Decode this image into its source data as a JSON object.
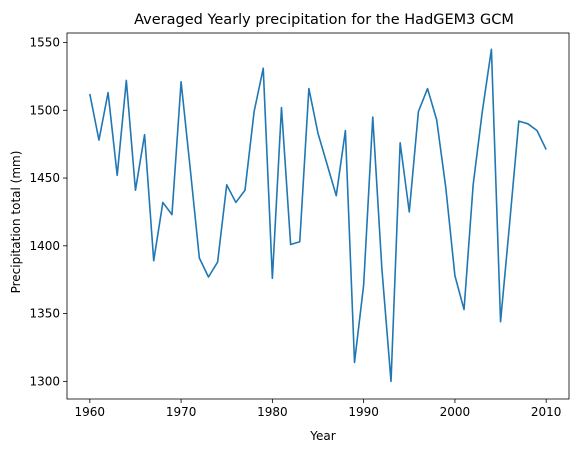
{
  "chart_data": {
    "type": "line",
    "title": "Averaged Yearly precipitation for the HadGEM3 GCM",
    "xlabel": "Year",
    "ylabel": "Precipitation total (mm)",
    "xlim": [
      1957.5,
      2012.5
    ],
    "ylim": [
      1287,
      1557
    ],
    "xticks": [
      1960,
      1970,
      1980,
      1990,
      2000,
      2010
    ],
    "yticks": [
      1300,
      1350,
      1400,
      1450,
      1500,
      1550
    ],
    "grid": false,
    "line_color": "#1f77b4",
    "series": [
      {
        "x": [
          1960,
          1961,
          1962,
          1963,
          1964,
          1965,
          1966,
          1967,
          1968,
          1969,
          1970,
          1971,
          1972,
          1973,
          1974,
          1975,
          1976,
          1977,
          1978,
          1979,
          1980,
          1981,
          1982,
          1983,
          1984,
          1985,
          1986,
          1987,
          1988,
          1989,
          1990,
          1991,
          1992,
          1993,
          1994,
          1995,
          1996,
          1997,
          1998,
          1999,
          2000,
          2001,
          2002,
          2003,
          2004,
          2005,
          2006,
          2007,
          2008,
          2009,
          2010
        ],
        "values": [
          1512,
          1478,
          1513,
          1452,
          1522,
          1441,
          1482,
          1389,
          1432,
          1423,
          1521,
          1457,
          1391,
          1377,
          1388,
          1445,
          1432,
          1441,
          1499,
          1531,
          1376,
          1502,
          1401,
          1403,
          1516,
          1483,
          1460,
          1437,
          1485,
          1314,
          1371,
          1495,
          1383,
          1300,
          1476,
          1425,
          1499,
          1516,
          1493,
          1443,
          1378,
          1353,
          1445,
          1499,
          1545,
          1344,
          1417,
          1492,
          1490,
          1485,
          1471
        ]
      }
    ]
  }
}
